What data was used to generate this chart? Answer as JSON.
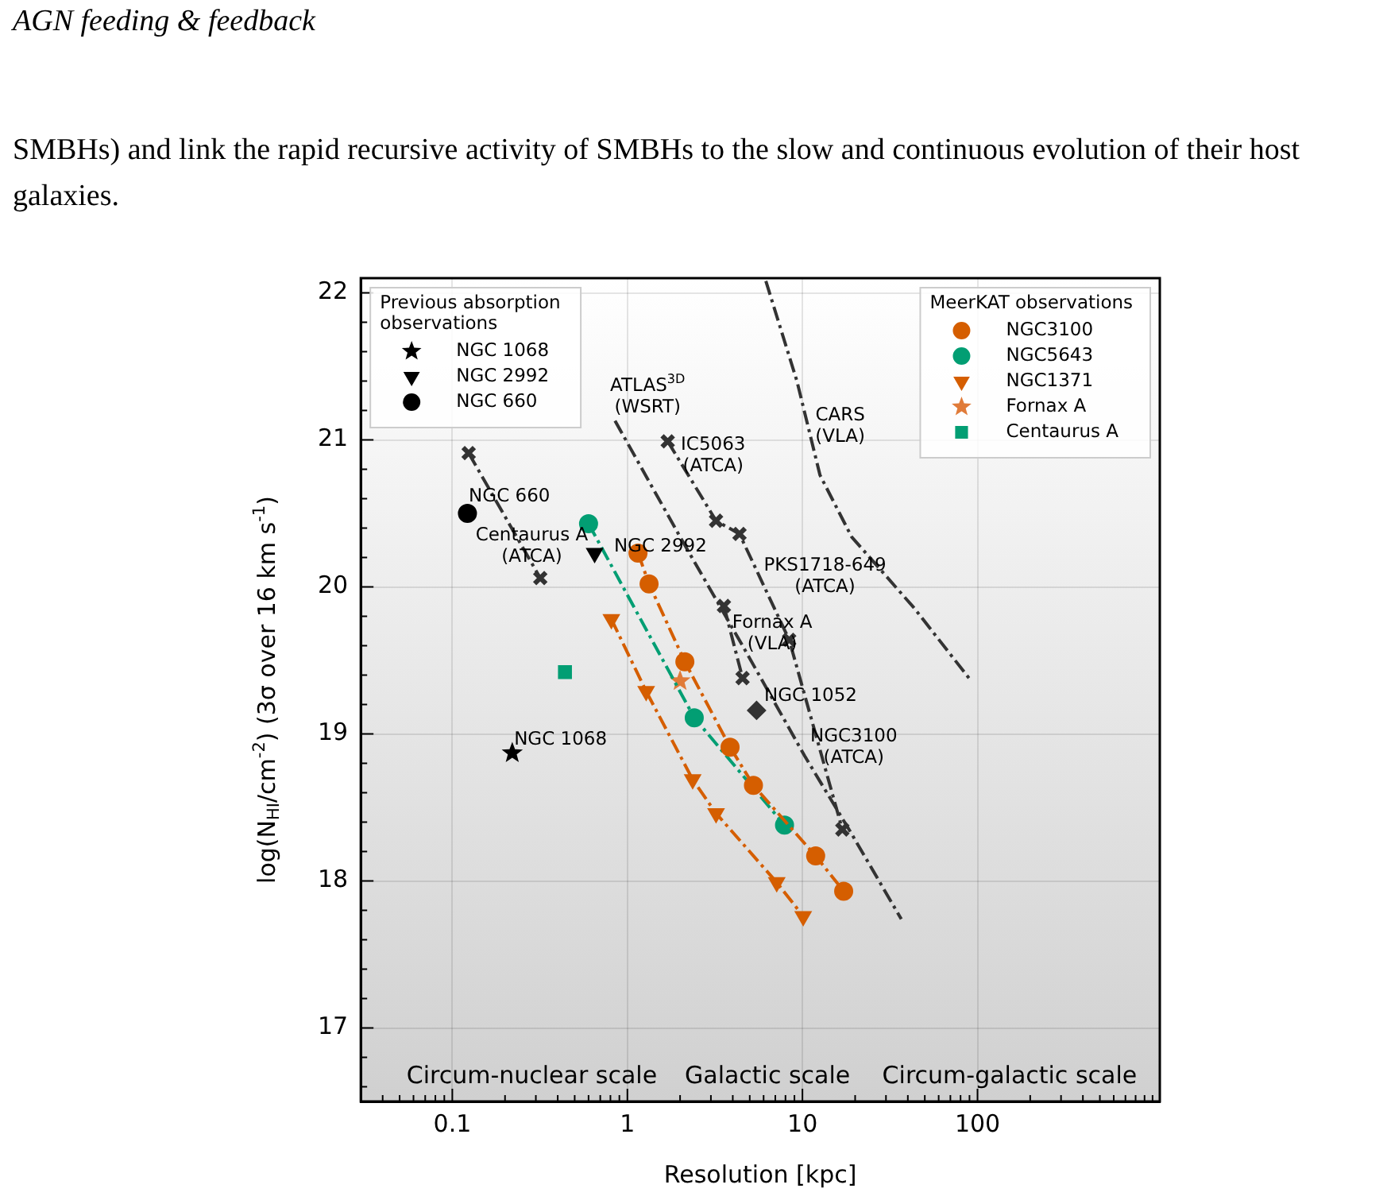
{
  "chart_data": {
    "type": "scatter",
    "title": "AGN feeding & feedback",
    "subtitle": "SMBHs) and link the rapid recursive activity of SMBHs to the slow and continuous evolution of their host galaxies.",
    "xlabel": "Resolution [kpc]",
    "ylabel": "log(N$_{HI}$/cm$^{-2}$) (3σ over 16 km s$^{-1}$)",
    "log": "x",
    "grid": true,
    "legend": [
      "top left",
      "top right"
    ],
    "legend_title": [
      "Previous absorption\nobservations",
      "MeerKAT observations"
    ],
    "xlim": [
      0.03,
      1100
    ],
    "ylim": [
      16.5,
      22.1
    ],
    "xticks": [
      {
        "value": 0.03,
        "label": null
      },
      {
        "value": 0.04,
        "label": null
      },
      {
        "value": 0.05,
        "label": null
      },
      {
        "value": 0.06,
        "label": null
      },
      {
        "value": 0.07,
        "label": null
      },
      {
        "value": 0.08,
        "label": null
      },
      {
        "value": 0.09,
        "label": null
      },
      0.1,
      {
        "value": 0.2,
        "label": null
      },
      {
        "value": 0.3,
        "label": null
      },
      {
        "value": 0.4,
        "label": null
      },
      {
        "value": 0.5,
        "label": null
      },
      {
        "value": 0.6,
        "label": null
      },
      {
        "value": 0.7,
        "label": null
      },
      {
        "value": 0.8,
        "label": null
      },
      {
        "value": 0.9,
        "label": null
      },
      1,
      {
        "value": 2,
        "label": null
      },
      {
        "value": 3,
        "label": null
      },
      {
        "value": 4,
        "label": null
      },
      {
        "value": 5,
        "label": null
      },
      {
        "value": 6,
        "label": null
      },
      {
        "value": 7,
        "label": null
      },
      {
        "value": 8,
        "label": null
      },
      {
        "value": 9,
        "label": null
      },
      10,
      {
        "value": 20,
        "label": null
      },
      {
        "value": 30,
        "label": null
      },
      {
        "value": 40,
        "label": null
      },
      {
        "value": 50,
        "label": null
      },
      {
        "value": 60,
        "label": null
      },
      {
        "value": 70,
        "label": null
      },
      {
        "value": 80,
        "label": null
      },
      {
        "value": 90,
        "label": null
      },
      100,
      {
        "value": 200,
        "label": null
      },
      {
        "value": 300,
        "label": null
      },
      {
        "value": 400,
        "label": null
      },
      {
        "value": 500,
        "label": null
      },
      {
        "value": 600,
        "label": null
      },
      {
        "value": 700,
        "label": null
      },
      {
        "value": 800,
        "label": null
      },
      {
        "value": 900,
        "label": null
      },
      {
        "value": 1000,
        "label": null
      }
    ],
    "yticks": [
      {
        "value": 16.6,
        "label": null
      },
      {
        "value": 16.8,
        "label": null
      },
      17,
      {
        "value": 17.2,
        "label": null
      },
      {
        "value": 17.4,
        "label": null
      },
      {
        "value": 17.6,
        "label": null
      },
      {
        "value": 17.8,
        "label": null
      },
      18,
      {
        "value": 18.2,
        "label": null
      },
      {
        "value": 18.4,
        "label": null
      },
      {
        "value": 18.6,
        "label": null
      },
      {
        "value": 18.8,
        "label": null
      },
      19,
      {
        "value": 19.2,
        "label": null
      },
      {
        "value": 19.4,
        "label": null
      },
      {
        "value": 19.6,
        "label": null
      },
      {
        "value": 19.8,
        "label": null
      },
      20,
      {
        "value": 20.2,
        "label": null
      },
      {
        "value": 20.4,
        "label": null
      },
      {
        "value": 20.6,
        "label": null
      },
      {
        "value": 20.8,
        "label": null
      },
      21,
      {
        "value": 21.2,
        "label": null
      },
      {
        "value": 21.4,
        "label": null
      },
      {
        "value": 21.6,
        "label": null
      },
      {
        "value": 21.8,
        "label": null
      },
      22
    ],
    "series": [
      {
        "name": "NGC 1068",
        "type": "scatter",
        "marker": "star",
        "color": "#000000",
        "x": [
          0.22
        ],
        "values": [
          18.87
        ]
      },
      {
        "name": "NGC 2992",
        "type": "scatter",
        "marker": "triangle",
        "color": "#000000",
        "x": [
          0.65
        ],
        "values": [
          20.23
        ]
      },
      {
        "name": "NGC 660",
        "type": "scatter",
        "marker": "circle",
        "color": "#000000",
        "x": [
          0.122
        ],
        "values": [
          20.5
        ]
      },
      {
        "name": "NGC3100",
        "type": "line",
        "marker": "circle",
        "line_style": "dashed",
        "color": "#d55e00",
        "x": [
          1.15,
          1.33,
          2.13,
          3.86,
          5.25,
          11.9,
          17.2
        ],
        "values": [
          20.23,
          20.02,
          19.49,
          18.91,
          18.65,
          18.17,
          17.93
        ]
      },
      {
        "name": "NGC5643",
        "type": "line",
        "marker": "circle",
        "line_style": "dashed",
        "color": "#029e73",
        "x": [
          0.6,
          2.41,
          7.9
        ],
        "values": [
          20.43,
          19.11,
          18.38
        ]
      },
      {
        "name": "NGC1371",
        "type": "line",
        "marker": "triangle",
        "line_style": "dashed",
        "color": "#d55e00",
        "x": [
          0.81,
          1.28,
          2.36,
          3.21,
          7.13,
          10.1
        ],
        "values": [
          19.78,
          19.29,
          18.69,
          18.46,
          17.99,
          17.76
        ]
      },
      {
        "name": "Fornax A",
        "type": "scatter",
        "marker": "star",
        "color": "#e07b39",
        "x": [
          2.0
        ],
        "values": [
          19.36
        ]
      },
      {
        "name": "Centaurus A",
        "type": "scatter",
        "marker": "square",
        "color": "#029e73",
        "x": [
          0.44
        ],
        "values": [
          19.42
        ]
      },
      {
        "type": "line",
        "marker": "cross",
        "line_style": "dashed",
        "color": "#333333",
        "x": [
          0.124,
          0.318
        ],
        "values": [
          20.91,
          20.06
        ]
      },
      {
        "type": "line",
        "marker": "cross",
        "line_style": "dashed",
        "color": "#333333",
        "x": [
          1.7,
          3.21,
          4.37,
          8.4,
          16.9
        ],
        "values": [
          20.99,
          20.45,
          20.36,
          19.64,
          18.35
        ]
      },
      {
        "type": "line",
        "marker": "cross",
        "line_style": "dashed",
        "color": "#333333",
        "x": [
          3.56,
          4.55
        ],
        "values": [
          19.87,
          19.38
        ]
      },
      {
        "type": "scatter",
        "marker": "diamond",
        "color": "#333333",
        "x": [
          5.47
        ],
        "values": [
          19.16
        ]
      },
      {
        "type": "line",
        "marker": "none",
        "line_style": "dashed",
        "color": "#333333",
        "x": [
          0.85,
          2.0,
          4.55,
          10.3,
          19.1,
          36.7
        ],
        "values": [
          21.13,
          20.34,
          19.6,
          18.85,
          18.32,
          17.74
        ]
      },
      {
        "type": "line",
        "marker": "none",
        "line_style": "dashed",
        "color": "#333333",
        "x": [
          6.18,
          9.3,
          12.6,
          19.1,
          43.2,
          92.1
        ],
        "values": [
          22.08,
          21.4,
          20.76,
          20.34,
          19.86,
          19.36
        ]
      }
    ],
    "annotations": [
      "NGC 660",
      "Centaurus A\n(ATCA)",
      "NGC 2992",
      "NGC 1068",
      "ATLAS$^{3D}$\n(WSRT)",
      "IC5063\n(ATCA)",
      "CARS\n(VLA)",
      "PKS1718-649\n(ATCA)",
      "Fornax A\n(VLA)",
      "NGC 1052",
      "NGC3100\n(ATCA)",
      "Circum-nuclear scale",
      "Galactic scale",
      "Circum-galactic scale"
    ]
  }
}
